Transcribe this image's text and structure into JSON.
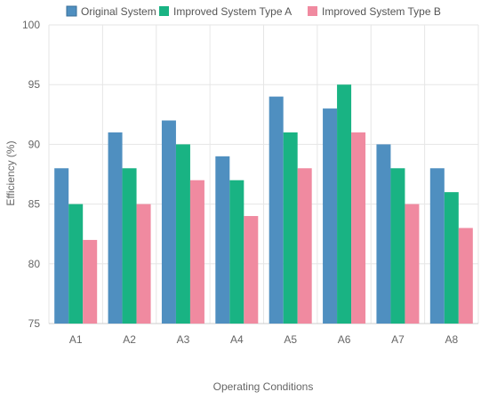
{
  "chart_data": {
    "type": "bar",
    "categories": [
      "A1",
      "A2",
      "A3",
      "A4",
      "A5",
      "A6",
      "A7",
      "A8"
    ],
    "series": [
      {
        "name": "Original System",
        "values": [
          88,
          91,
          92,
          89,
          94,
          93,
          90,
          88
        ],
        "color": "#4f8fc0"
      },
      {
        "name": "Improved System Type A",
        "values": [
          85,
          88,
          90,
          87,
          91,
          95,
          88,
          86
        ],
        "color": "#19b383"
      },
      {
        "name": "Improved System Type B",
        "values": [
          82,
          85,
          87,
          84,
          88,
          91,
          85,
          83
        ],
        "color": "#f08aa0"
      }
    ],
    "xlabel": "Operating Conditions",
    "ylabel": "Efficiency (%)",
    "ylim": [
      75,
      100
    ],
    "yticks": [
      "75",
      "80",
      "85",
      "90",
      "95",
      "100"
    ],
    "grid": true,
    "legend": "top-center",
    "xlabel_color": "#e0507a",
    "axis_color": "#666666",
    "grid_color": "#e6e6e6"
  }
}
